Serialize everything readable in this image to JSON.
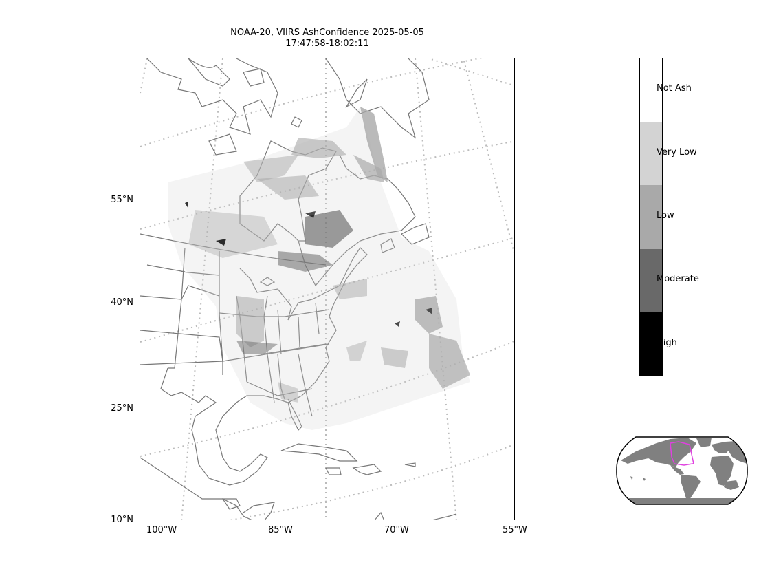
{
  "title": {
    "line1": "NOAA-20, VIIRS AshConfidence 2025-05-05",
    "line2": "17:47:58-18:02:11"
  },
  "map": {
    "lat_labels": [
      "55°N",
      "40°N",
      "25°N",
      "10°N"
    ],
    "lon_labels": [
      "100°W",
      "85°W",
      "70°W",
      "55°W"
    ],
    "graticule_color": "#bbbbbb",
    "coastline_color": "#777777",
    "ash_colors": {
      "very_low": "#d3d3d3",
      "low": "#a9a9a9",
      "moderate": "#696969",
      "high": "#000000"
    }
  },
  "colorbar": {
    "categories": [
      {
        "label": "Not Ash",
        "color": "#ffffff"
      },
      {
        "label": "Very Low",
        "color": "#d3d3d3"
      },
      {
        "label": "Low",
        "color": "#a9a9a9"
      },
      {
        "label": "Moderate",
        "color": "#696969"
      },
      {
        "label": "High",
        "color": "#000000"
      }
    ]
  },
  "inset": {
    "land_color": "#808080",
    "footprint_color": "#e040e0"
  }
}
